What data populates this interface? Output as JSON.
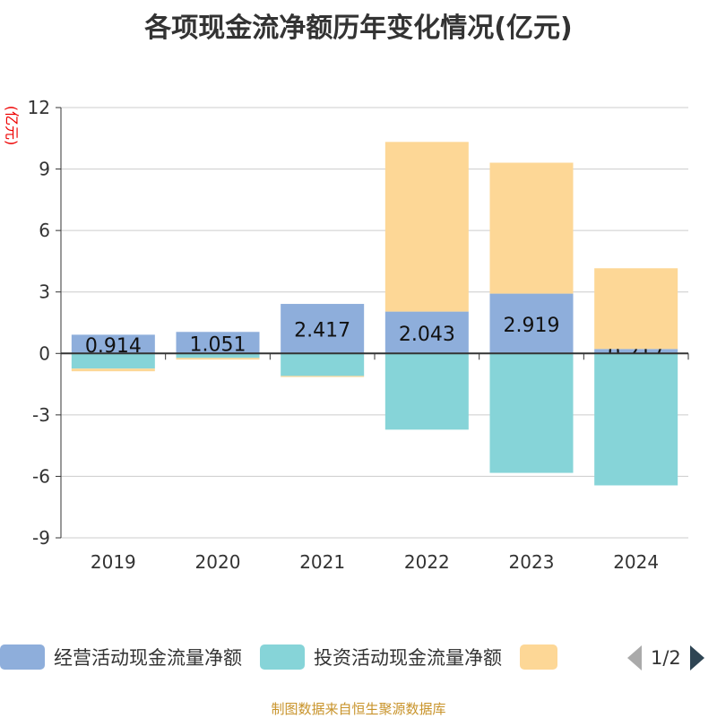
{
  "chart_data": {
    "type": "bar",
    "stacked": true,
    "title": "各项现金流净额历年变化情况(亿元)",
    "ylabel": "(亿元)",
    "categories": [
      "2019",
      "2020",
      "2021",
      "2022",
      "2023",
      "2024"
    ],
    "ylim": [
      -9,
      12
    ],
    "yticks": [
      12,
      9,
      6,
      3,
      0,
      -3,
      -6,
      -9
    ],
    "series": [
      {
        "name": "经营活动现金流量净额",
        "color": "#8eaedb",
        "values": [
          0.914,
          1.051,
          2.417,
          2.043,
          2.919,
          0.217
        ],
        "labels": [
          "0.914",
          "1.051",
          "2.417",
          "2.043",
          "2.919",
          "0.217"
        ]
      },
      {
        "name": "投资活动现金流量净额",
        "color": "#86d4d8",
        "values": [
          -0.74,
          -0.22,
          -1.1,
          -3.72,
          -5.83,
          -6.44
        ]
      },
      {
        "name": "",
        "color": "#fdd796",
        "values": [
          -0.13,
          -0.08,
          -0.05,
          8.28,
          6.39,
          3.94
        ]
      }
    ],
    "legend": {
      "placement": "bottom",
      "page": "1/2"
    }
  },
  "source": "制图数据来自恒生聚源数据库"
}
